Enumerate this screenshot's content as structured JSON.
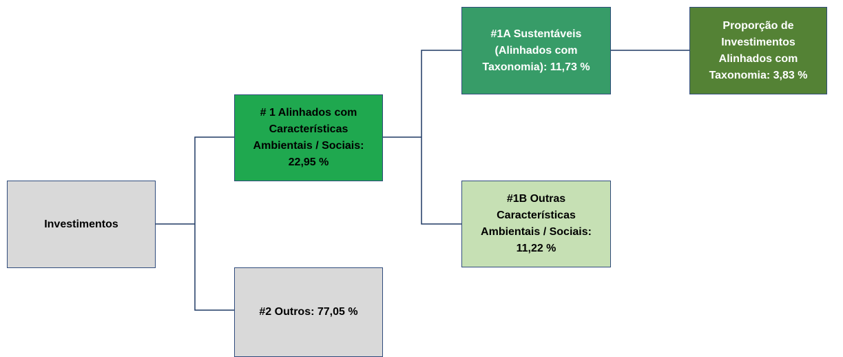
{
  "nodes": [
    {
      "id": "investimentos",
      "lines": [
        "Investimentos"
      ]
    },
    {
      "id": "n1",
      "lines": [
        "# 1 Alinhados com",
        "Características",
        "Ambientais / Sociais:",
        "22,95 %"
      ]
    },
    {
      "id": "n2",
      "lines": [
        "#2 Outros: 77,05 %"
      ]
    },
    {
      "id": "n1a",
      "lines": [
        "#1A Sustentáveis",
        "(Alinhados com",
        "Taxonomia): 11,73 %"
      ]
    },
    {
      "id": "n1b",
      "lines": [
        "#1B Outras",
        "Características",
        "Ambientais / Sociais:",
        "11,22 %"
      ]
    },
    {
      "id": "prop",
      "lines": [
        "Proporção de",
        "Investimentos",
        "Alinhados com",
        "Taxonomia: 3,83 %"
      ]
    }
  ]
}
